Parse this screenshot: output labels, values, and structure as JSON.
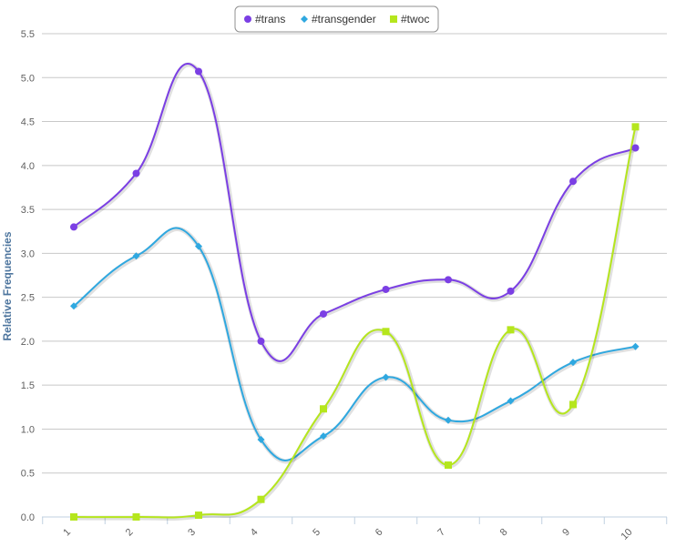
{
  "chart_data": {
    "type": "line",
    "smooth": true,
    "categories": [
      "1",
      "2",
      "3",
      "4",
      "5",
      "6",
      "7",
      "8",
      "9",
      "10"
    ],
    "ylabel": "Relative Frequencies",
    "xlabel": "",
    "ylim": [
      0,
      5.5
    ],
    "y_ticks": [
      "0.0",
      "0.5",
      "1.0",
      "1.5",
      "2.0",
      "2.5",
      "3.0",
      "3.5",
      "4.0",
      "4.5",
      "5.0",
      "5.5"
    ],
    "grid": "horizontal",
    "legend_position": "top-center",
    "series": [
      {
        "name": "#trans",
        "color": "#7b3fe4",
        "marker": "circle",
        "values": [
          3.3,
          3.91,
          5.07,
          2.0,
          2.31,
          2.59,
          2.7,
          2.57,
          3.82,
          4.2
        ]
      },
      {
        "name": "#transgender",
        "color": "#2fa8e0",
        "marker": "diamond",
        "values": [
          2.4,
          2.97,
          3.08,
          0.88,
          0.92,
          1.59,
          1.1,
          1.32,
          1.76,
          1.94
        ]
      },
      {
        "name": "#twoc",
        "color": "#b5e61d",
        "marker": "square",
        "values": [
          0.0,
          0.0,
          0.02,
          0.2,
          1.23,
          2.11,
          0.59,
          2.13,
          1.28,
          4.44
        ]
      }
    ]
  }
}
